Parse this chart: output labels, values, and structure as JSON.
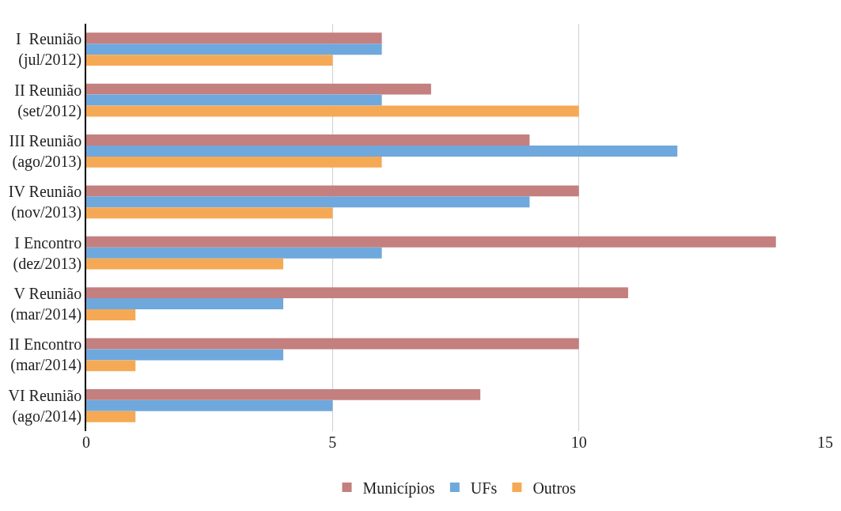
{
  "chart_data": {
    "type": "bar",
    "orientation": "horizontal",
    "categories": [
      "I  Reunião\n(jul/2012)",
      "II Reunião\n(set/2012)",
      "III Reunião\n(ago/2013)",
      "IV Reunião\n(nov/2013)",
      "I Encontro\n(dez/2013)",
      "V Reunião\n(mar/2014)",
      "II Encontro\n(mar/2014)",
      "VI Reunião\n(ago/2014)"
    ],
    "series": [
      {
        "name": "Municípios",
        "color": "#c47f7f",
        "values": [
          6,
          7,
          9,
          10,
          14,
          11,
          10,
          8
        ]
      },
      {
        "name": "UFs",
        "color": "#6fa8dc",
        "values": [
          6,
          6,
          12,
          9,
          6,
          4,
          4,
          5
        ]
      },
      {
        "name": "Outros",
        "color": "#f6a955",
        "values": [
          5,
          10,
          6,
          5,
          4,
          1,
          1,
          1
        ]
      }
    ],
    "xlim": [
      0,
      15
    ],
    "xticks": [
      0,
      5,
      10,
      15
    ],
    "grid": "x",
    "legend": "bottom"
  }
}
